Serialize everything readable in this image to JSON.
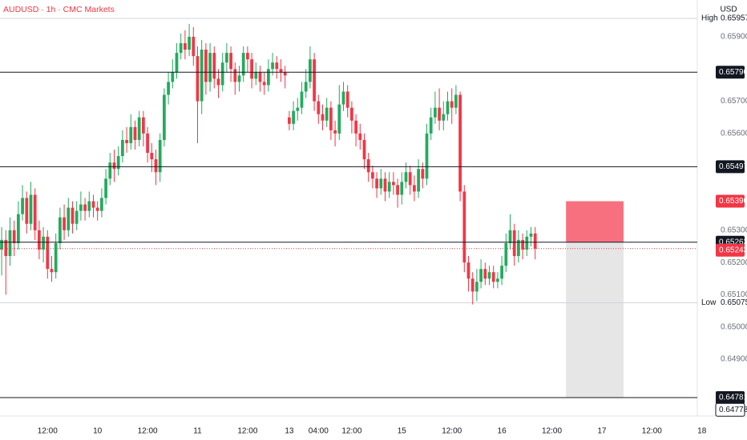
{
  "chart_data": {
    "type": "candlestick",
    "title": "AUDUSD · 1h · CMC Markets",
    "currency": "USD",
    "up_color": "#22ab5e",
    "down_color": "#f23645",
    "x": [
      0,
      1,
      2,
      3,
      4,
      5,
      6,
      7,
      8,
      9,
      10,
      11,
      12,
      13,
      14,
      15,
      16,
      17,
      18,
      19,
      20,
      21,
      22,
      23,
      24,
      25,
      26,
      27,
      28,
      29,
      30,
      31,
      32,
      33,
      34,
      35,
      36,
      37,
      38,
      39,
      40,
      41,
      42,
      43,
      44,
      45,
      46,
      47,
      48,
      49,
      50,
      51,
      52,
      53,
      54,
      55,
      56,
      57,
      58,
      59,
      60,
      61,
      62,
      63,
      64,
      65,
      66,
      67,
      68,
      69,
      70,
      71,
      72,
      73,
      74,
      75,
      76,
      77,
      78,
      79,
      80,
      81,
      82,
      83,
      84,
      85,
      86,
      87,
      88,
      89,
      90,
      91,
      92,
      93,
      94,
      95,
      96,
      97,
      98,
      99,
      100,
      101,
      102,
      103,
      104,
      105,
      106,
      107,
      108,
      109,
      110,
      111,
      112,
      113,
      114,
      115,
      116,
      117,
      118,
      119,
      120,
      121,
      122,
      123,
      124,
      125,
      126,
      127,
      128
    ],
    "ohlc": [
      [
        0.6524,
        0.6531,
        0.6516,
        0.6527
      ],
      [
        0.6527,
        0.653,
        0.651,
        0.6522
      ],
      [
        0.6522,
        0.6534,
        0.6519,
        0.653
      ],
      [
        0.653,
        0.6533,
        0.6522,
        0.6526
      ],
      [
        0.6526,
        0.6539,
        0.6524,
        0.6535
      ],
      [
        0.6535,
        0.6544,
        0.6533,
        0.654
      ],
      [
        0.654,
        0.6542,
        0.6529,
        0.6532
      ],
      [
        0.6532,
        0.6545,
        0.653,
        0.6541
      ],
      [
        0.6541,
        0.6543,
        0.6527,
        0.653
      ],
      [
        0.653,
        0.6533,
        0.6521,
        0.6524
      ],
      [
        0.6524,
        0.6531,
        0.652,
        0.6528
      ],
      [
        0.6528,
        0.653,
        0.6515,
        0.6518
      ],
      [
        0.6518,
        0.6522,
        0.6514,
        0.6517
      ],
      [
        0.6517,
        0.6529,
        0.6515,
        0.6526
      ],
      [
        0.6526,
        0.6537,
        0.6524,
        0.6534
      ],
      [
        0.6534,
        0.6538,
        0.6527,
        0.653
      ],
      [
        0.653,
        0.654,
        0.6528,
        0.6537
      ],
      [
        0.6537,
        0.6539,
        0.6529,
        0.6532
      ],
      [
        0.6532,
        0.6539,
        0.653,
        0.6536
      ],
      [
        0.6536,
        0.6542,
        0.6533,
        0.6538
      ],
      [
        0.6538,
        0.654,
        0.6533,
        0.6536
      ],
      [
        0.6536,
        0.6542,
        0.6534,
        0.6539
      ],
      [
        0.6539,
        0.6541,
        0.6534,
        0.6537
      ],
      [
        0.6537,
        0.6539,
        0.6533,
        0.6536
      ],
      [
        0.6536,
        0.6543,
        0.6534,
        0.654
      ],
      [
        0.654,
        0.6549,
        0.6538,
        0.6546
      ],
      [
        0.6546,
        0.6554,
        0.6544,
        0.6551
      ],
      [
        0.6551,
        0.6555,
        0.6545,
        0.6549
      ],
      [
        0.6549,
        0.6556,
        0.6547,
        0.6553
      ],
      [
        0.6553,
        0.6561,
        0.6551,
        0.6558
      ],
      [
        0.6558,
        0.6562,
        0.6554,
        0.6557
      ],
      [
        0.6557,
        0.6566,
        0.6555,
        0.6562
      ],
      [
        0.6562,
        0.6564,
        0.6555,
        0.6558
      ],
      [
        0.6558,
        0.6567,
        0.6556,
        0.6565
      ],
      [
        0.6565,
        0.6567,
        0.6556,
        0.656
      ],
      [
        0.656,
        0.6562,
        0.6551,
        0.6554
      ],
      [
        0.6554,
        0.6557,
        0.6548,
        0.6552
      ],
      [
        0.6552,
        0.6555,
        0.6544,
        0.6548
      ],
      [
        0.6548,
        0.656,
        0.6545,
        0.6558
      ],
      [
        0.6558,
        0.6574,
        0.6556,
        0.6572
      ],
      [
        0.6572,
        0.6579,
        0.6569,
        0.6576
      ],
      [
        0.6576,
        0.6583,
        0.6574,
        0.6579
      ],
      [
        0.6579,
        0.6588,
        0.6577,
        0.6585
      ],
      [
        0.6585,
        0.6591,
        0.6583,
        0.6588
      ],
      [
        0.6588,
        0.6592,
        0.6583,
        0.6586
      ],
      [
        0.6586,
        0.6594,
        0.6584,
        0.659
      ],
      [
        0.659,
        0.6593,
        0.6581,
        0.6584
      ],
      [
        0.6584,
        0.6587,
        0.6557,
        0.657
      ],
      [
        0.657,
        0.6589,
        0.6566,
        0.6586
      ],
      [
        0.6586,
        0.6588,
        0.6572,
        0.6576
      ],
      [
        0.6576,
        0.6588,
        0.6573,
        0.6585
      ],
      [
        0.6585,
        0.6587,
        0.6574,
        0.6577
      ],
      [
        0.6577,
        0.658,
        0.6571,
        0.6575
      ],
      [
        0.6575,
        0.6585,
        0.6573,
        0.6582
      ],
      [
        0.6582,
        0.6588,
        0.6579,
        0.6585
      ],
      [
        0.6585,
        0.6587,
        0.6576,
        0.658
      ],
      [
        0.658,
        0.6582,
        0.6572,
        0.6576
      ],
      [
        0.6576,
        0.6581,
        0.6573,
        0.6578
      ],
      [
        0.6578,
        0.6587,
        0.6576,
        0.6585
      ],
      [
        0.6585,
        0.6587,
        0.6579,
        0.6583
      ],
      [
        0.6583,
        0.6585,
        0.6574,
        0.6577
      ],
      [
        0.6577,
        0.6582,
        0.6575,
        0.6579
      ],
      [
        0.6579,
        0.6581,
        0.6573,
        0.6576
      ],
      [
        0.6576,
        0.6579,
        0.6572,
        0.6575
      ],
      [
        0.6575,
        0.6583,
        0.6573,
        0.658
      ],
      [
        0.658,
        0.6585,
        0.6578,
        0.6582
      ],
      [
        0.6582,
        0.6584,
        0.6577,
        0.658
      ],
      [
        0.658,
        0.6583,
        0.6576,
        0.6579
      ],
      [
        0.6579,
        0.6581,
        0.6574,
        0.6578
      ],
      [
        0.6565,
        0.6567,
        0.6561,
        0.6563
      ],
      [
        0.6563,
        0.657,
        0.6561,
        0.6567
      ],
      [
        0.6567,
        0.6571,
        0.6564,
        0.6568
      ],
      [
        0.6568,
        0.6576,
        0.6566,
        0.6573
      ],
      [
        0.6573,
        0.658,
        0.6571,
        0.6576
      ],
      [
        0.6576,
        0.6587,
        0.6574,
        0.6583
      ],
      [
        0.6583,
        0.6585,
        0.6567,
        0.657
      ],
      [
        0.657,
        0.6572,
        0.6563,
        0.6566
      ],
      [
        0.6566,
        0.6569,
        0.6561,
        0.6564
      ],
      [
        0.6564,
        0.6571,
        0.6562,
        0.6568
      ],
      [
        0.6568,
        0.657,
        0.6558,
        0.6561
      ],
      [
        0.6561,
        0.6564,
        0.6556,
        0.656
      ],
      [
        0.656,
        0.6575,
        0.6558,
        0.6569
      ],
      [
        0.6569,
        0.6576,
        0.6567,
        0.6573
      ],
      [
        0.6573,
        0.6575,
        0.6565,
        0.6568
      ],
      [
        0.6568,
        0.657,
        0.656,
        0.6564
      ],
      [
        0.6564,
        0.6566,
        0.6556,
        0.656
      ],
      [
        0.656,
        0.6563,
        0.6555,
        0.6558
      ],
      [
        0.6558,
        0.656,
        0.6549,
        0.6552
      ],
      [
        0.6552,
        0.6554,
        0.6545,
        0.6548
      ],
      [
        0.6548,
        0.655,
        0.6543,
        0.6546
      ],
      [
        0.6546,
        0.6548,
        0.654,
        0.6543
      ],
      [
        0.6543,
        0.6549,
        0.6541,
        0.6546
      ],
      [
        0.6546,
        0.6548,
        0.6539,
        0.6542
      ],
      [
        0.6542,
        0.6548,
        0.654,
        0.6545
      ],
      [
        0.6545,
        0.6548,
        0.6541,
        0.6544
      ],
      [
        0.6544,
        0.6546,
        0.6537,
        0.6541
      ],
      [
        0.6541,
        0.6548,
        0.6538,
        0.6545
      ],
      [
        0.6545,
        0.6551,
        0.6543,
        0.6548
      ],
      [
        0.6548,
        0.655,
        0.6541,
        0.6544
      ],
      [
        0.6544,
        0.6547,
        0.6539,
        0.6542
      ],
      [
        0.6542,
        0.6552,
        0.654,
        0.6549
      ],
      [
        0.6549,
        0.6551,
        0.6543,
        0.6546
      ],
      [
        0.6546,
        0.6563,
        0.6544,
        0.656
      ],
      [
        0.656,
        0.6568,
        0.6558,
        0.6565
      ],
      [
        0.6565,
        0.6573,
        0.6563,
        0.6568
      ],
      [
        0.6568,
        0.6574,
        0.6561,
        0.6564
      ],
      [
        0.6564,
        0.657,
        0.6561,
        0.6566
      ],
      [
        0.6566,
        0.6573,
        0.6564,
        0.657
      ],
      [
        0.657,
        0.6574,
        0.6563,
        0.6568
      ],
      [
        0.6568,
        0.6575,
        0.6566,
        0.6572
      ],
      [
        0.6572,
        0.6573,
        0.6539,
        0.6542
      ],
      [
        0.6542,
        0.6544,
        0.6517,
        0.652
      ],
      [
        0.652,
        0.6522,
        0.6511,
        0.6515
      ],
      [
        0.6515,
        0.6517,
        0.6507,
        0.6511
      ],
      [
        0.6511,
        0.6518,
        0.6508,
        0.6514
      ],
      [
        0.6514,
        0.6521,
        0.6512,
        0.6518
      ],
      [
        0.6518,
        0.652,
        0.6513,
        0.6515
      ],
      [
        0.6515,
        0.6519,
        0.6513,
        0.6517
      ],
      [
        0.6517,
        0.6519,
        0.6512,
        0.6514
      ],
      [
        0.6514,
        0.6517,
        0.6512,
        0.6515
      ],
      [
        0.6515,
        0.6522,
        0.6513,
        0.6519
      ],
      [
        0.6519,
        0.6529,
        0.6517,
        0.6526
      ],
      [
        0.6526,
        0.6535,
        0.6524,
        0.653
      ],
      [
        0.653,
        0.6532,
        0.6519,
        0.6522
      ],
      [
        0.6522,
        0.653,
        0.652,
        0.6527
      ],
      [
        0.6527,
        0.6529,
        0.6521,
        0.6524
      ],
      [
        0.6524,
        0.653,
        0.6522,
        0.6528
      ],
      [
        0.6528,
        0.6531,
        0.6525,
        0.6529
      ],
      [
        0.6529,
        0.6531,
        0.6521,
        0.65243
      ]
    ],
    "xlim": [
      -0.4,
      166.9
    ],
    "ylim": [
      0.64724,
      0.66014
    ],
    "xticks": [
      {
        "value": 11,
        "label": "12:00"
      },
      {
        "value": 23,
        "label": "10"
      },
      {
        "value": 35,
        "label": "12:00"
      },
      {
        "value": 47,
        "label": "11"
      },
      {
        "value": 59,
        "label": "12:00"
      },
      {
        "value": 69,
        "label": "13"
      },
      {
        "value": 76,
        "label": "04:00"
      },
      {
        "value": 84,
        "label": "12:00"
      },
      {
        "value": 96,
        "label": "15"
      },
      {
        "value": 108,
        "label": "12:00"
      },
      {
        "value": 120,
        "label": "16"
      },
      {
        "value": 132,
        "label": "12:00"
      },
      {
        "value": 144,
        "label": "17"
      },
      {
        "value": 156,
        "label": "12:00"
      },
      {
        "value": 168,
        "label": "18"
      }
    ],
    "yticks": [
      {
        "value": 0.659,
        "label": "0.65900"
      },
      {
        "value": 0.657,
        "label": "0.65700"
      },
      {
        "value": 0.656,
        "label": "0.65600"
      },
      {
        "value": 0.653,
        "label": "0.65300"
      },
      {
        "value": 0.652,
        "label": "0.65200"
      },
      {
        "value": 0.651,
        "label": "0.65100"
      },
      {
        "value": 0.65,
        "label": "0.65000"
      },
      {
        "value": 0.649,
        "label": "0.64900"
      }
    ],
    "levels": [
      {
        "value": 0.6579,
        "label": "0.65790"
      },
      {
        "value": 0.65497,
        "label": "0.65497"
      },
      {
        "value": 0.65263,
        "label": "0.65263"
      },
      {
        "value": 0.64781,
        "label": "0.64781"
      }
    ],
    "high": {
      "name": "High",
      "value": 0.65957,
      "label": "0.65957"
    },
    "low": {
      "name": "Low",
      "value": 0.65075,
      "label": "0.65075"
    },
    "last": {
      "value": 0.65243,
      "label": "0.65243"
    },
    "position": {
      "x": [
        135.4,
        149.2
      ],
      "stop": {
        "value": 0.6539,
        "label": "0.65390"
      },
      "entry": 0.65263,
      "target": 0.64781
    },
    "cursor": {
      "value": 0.64778,
      "label": "0.64778"
    }
  }
}
